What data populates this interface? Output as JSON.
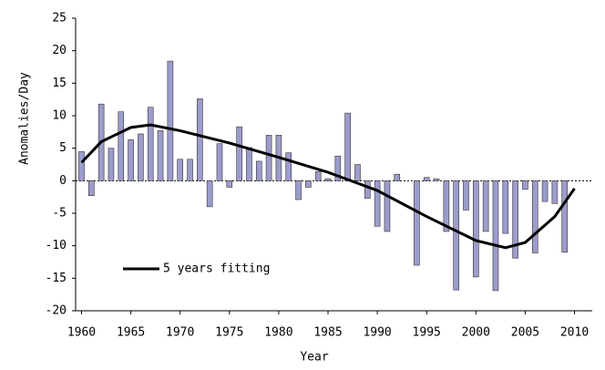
{
  "chart_data": {
    "type": "bar-line",
    "x_label": "Year",
    "y_label": "Anomalies/Day",
    "xlim": [
      1959.4,
      2011.8
    ],
    "xticks": [
      1960,
      1965,
      1970,
      1975,
      1980,
      1985,
      1990,
      1995,
      2000,
      2005,
      2010
    ],
    "ylim": [
      -20,
      25
    ],
    "yticks": [
      -20,
      -15,
      -10,
      -5,
      0,
      5,
      10,
      15,
      20,
      25
    ],
    "legend": "lower-left",
    "series": [
      {
        "type": "bar",
        "color": "#9c9ccc",
        "x": [
          1960,
          1961,
          1962,
          1963,
          1964,
          1965,
          1966,
          1967,
          1968,
          1969,
          1970,
          1971,
          1972,
          1973,
          1974,
          1975,
          1976,
          1977,
          1978,
          1979,
          1980,
          1981,
          1982,
          1983,
          1984,
          1985,
          1986,
          1987,
          1988,
          1989,
          1990,
          1991,
          1992,
          1993,
          1994,
          1995,
          1996,
          1997,
          1998,
          1999,
          2000,
          2001,
          2002,
          2003,
          2004,
          2005,
          2006,
          2007,
          2008,
          2009
        ],
        "values": [
          4.5,
          -2.3,
          11.8,
          5,
          10.6,
          6.3,
          7.2,
          11.3,
          7.7,
          18.4,
          3.3,
          3.3,
          12.6,
          -4,
          5.7,
          -1,
          8.3,
          5.1,
          3,
          7,
          7,
          4.3,
          -2.9,
          -1,
          1.4,
          0.3,
          3.8,
          10.4,
          2.5,
          -2.7,
          -7,
          -7.8,
          1,
          0,
          -13,
          0.5,
          0.3,
          -7.8,
          -16.8,
          -4.5,
          -14.8,
          -7.8,
          -16.9,
          -8.1,
          -11.9,
          -1.3,
          -11.1,
          -3.2,
          -3.5,
          -11
        ]
      },
      {
        "type": "line",
        "name": "5 years fitting",
        "color": "#000000",
        "x": [
          1960,
          1962,
          1965,
          1967,
          1970,
          1975,
          1980,
          1985,
          1990,
          1995,
          2000,
          2003,
          2005,
          2008,
          2010
        ],
        "values": [
          2.8,
          6,
          8.2,
          8.6,
          7.7,
          5.8,
          3.6,
          1.3,
          -1.5,
          -5.5,
          -9.2,
          -10.3,
          -9.5,
          -5.5,
          -1.2
        ]
      }
    ]
  }
}
